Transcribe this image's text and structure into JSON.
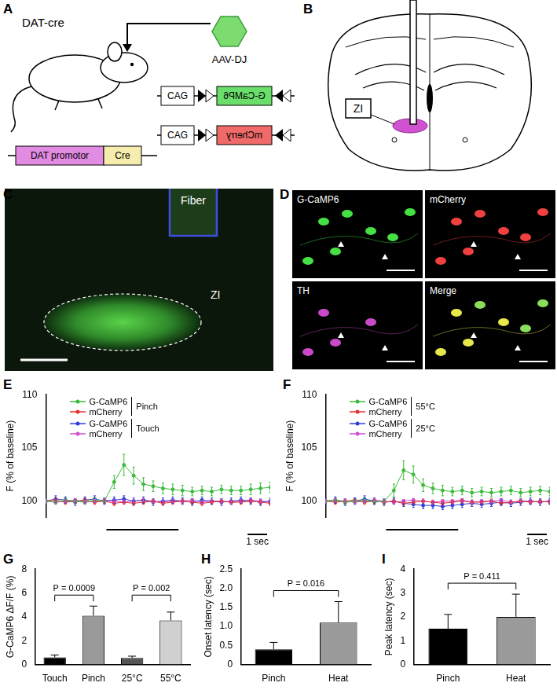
{
  "panels": {
    "A": {
      "label": "A",
      "mouse": "DAT-cre",
      "virus": "AAV-DJ",
      "transgene": [
        "DAT promotor",
        "Cre"
      ],
      "constructs": [
        [
          "CAG",
          "G-CaMP6"
        ],
        [
          "CAG",
          "mCherry"
        ]
      ]
    },
    "B": {
      "label": "B",
      "region": "ZI"
    },
    "C": {
      "label": "C",
      "fiber": "Fiber",
      "region": "ZI"
    },
    "D": {
      "label": "D",
      "channels": [
        "G-CaMP6",
        "mCherry",
        "TH",
        "Merge"
      ]
    }
  },
  "chart_data": [
    {
      "label": "E",
      "type": "line",
      "y_label": "F (% of baseline)",
      "x": [
        0,
        0.5,
        1,
        1.5,
        2,
        2.5,
        3,
        3.5,
        4,
        4.5,
        5,
        5.5,
        6,
        6.5,
        7,
        7.5,
        8,
        8.5,
        9,
        9.5,
        10,
        10.5,
        11,
        11.5
      ],
      "xlim": [
        0,
        11.5
      ],
      "ylim": [
        98.5,
        110
      ],
      "yticks": [
        100,
        105,
        110
      ],
      "tick_labels": "y",
      "grid": false,
      "stimulus": [
        3.1,
        6.8
      ],
      "scale_bar": {
        "length": 1,
        "label": "1 sec"
      },
      "series": [
        {
          "name": "G-CaMP6",
          "group": "Pinch",
          "color": "#3dbb3d",
          "values": [
            100.0,
            99.9,
            100.1,
            100.0,
            99.9,
            100.1,
            100.0,
            101.8,
            103.4,
            102.4,
            101.6,
            101.4,
            101.2,
            101.1,
            101.0,
            100.9,
            101.0,
            100.9,
            101.1,
            101.0,
            101.0,
            101.1,
            101.2,
            101.3
          ],
          "errors": [
            0.2,
            0.2,
            0.2,
            0.2,
            0.2,
            0.2,
            0.2,
            0.6,
            1.0,
            0.8,
            0.6,
            0.5,
            0.5,
            0.5,
            0.5,
            0.4,
            0.4,
            0.4,
            0.4,
            0.4,
            0.4,
            0.5,
            0.5,
            0.5
          ]
        },
        {
          "name": "mCherry",
          "group": "Pinch",
          "color": "#e8312f",
          "values": [
            100.0,
            100.1,
            99.9,
            100.0,
            100.1,
            99.9,
            100.0,
            99.8,
            99.9,
            99.8,
            99.9,
            100.0,
            99.8,
            99.9,
            100.0,
            99.9,
            99.8,
            99.9,
            100.0,
            99.9,
            99.9,
            100.0,
            99.9,
            99.8
          ],
          "errors": [
            0.2,
            0.2,
            0.2,
            0.2,
            0.2,
            0.2,
            0.2,
            0.2,
            0.2,
            0.2,
            0.2,
            0.2,
            0.2,
            0.2,
            0.2,
            0.2,
            0.2,
            0.2,
            0.2,
            0.2,
            0.2,
            0.2,
            0.2,
            0.2
          ]
        },
        {
          "name": "G-CaMP6",
          "group": "Touch",
          "color": "#2f3fd8",
          "values": [
            100.0,
            100.2,
            100.1,
            99.9,
            100.1,
            100.2,
            100.0,
            100.1,
            100.2,
            100.0,
            100.1,
            99.9,
            100.0,
            100.1,
            100.0,
            99.9,
            100.1,
            100.0,
            99.9,
            100.0,
            100.1,
            100.0,
            99.9,
            100.0
          ],
          "errors": [
            0.3,
            0.3,
            0.3,
            0.3,
            0.3,
            0.3,
            0.3,
            0.3,
            0.3,
            0.3,
            0.3,
            0.3,
            0.3,
            0.3,
            0.3,
            0.3,
            0.3,
            0.3,
            0.3,
            0.3,
            0.3,
            0.3,
            0.3,
            0.3
          ]
        },
        {
          "name": "mCherry",
          "group": "Touch",
          "color": "#d24fd2",
          "values": [
            100.0,
            99.9,
            100.0,
            100.1,
            99.9,
            100.0,
            100.1,
            100.0,
            99.9,
            100.0,
            100.1,
            100.0,
            99.9,
            100.0,
            100.0,
            100.1,
            99.9,
            100.0,
            100.0,
            99.9,
            100.0,
            100.1,
            100.0,
            99.9
          ],
          "errors": [
            0.15,
            0.15,
            0.15,
            0.15,
            0.15,
            0.15,
            0.15,
            0.15,
            0.15,
            0.15,
            0.15,
            0.15,
            0.15,
            0.15,
            0.15,
            0.15,
            0.15,
            0.15,
            0.15,
            0.15,
            0.15,
            0.15,
            0.15,
            0.15
          ]
        }
      ]
    },
    {
      "label": "F",
      "type": "line",
      "y_label": "F (% of baseline)",
      "x": [
        0,
        0.5,
        1,
        1.5,
        2,
        2.5,
        3,
        3.5,
        4,
        4.5,
        5,
        5.5,
        6,
        6.5,
        7,
        7.5,
        8,
        8.5,
        9,
        9.5,
        10,
        10.5,
        11,
        11.5
      ],
      "xlim": [
        0,
        11.5
      ],
      "ylim": [
        98.5,
        110
      ],
      "yticks": [
        100,
        105,
        110
      ],
      "tick_labels": "y",
      "grid": false,
      "stimulus": [
        3.1,
        6.8
      ],
      "scale_bar": {
        "length": 1,
        "label": "1 sec"
      },
      "series": [
        {
          "name": "G-CaMP6",
          "group": "55°C",
          "color": "#3dbb3d",
          "values": [
            100.0,
            100.1,
            99.9,
            100.0,
            100.1,
            99.9,
            100.0,
            101.0,
            102.9,
            102.5,
            101.5,
            101.2,
            101.0,
            100.9,
            101.0,
            100.8,
            100.9,
            100.8,
            100.9,
            101.0,
            100.8,
            100.9,
            101.0,
            100.9
          ],
          "errors": [
            0.2,
            0.2,
            0.2,
            0.2,
            0.2,
            0.2,
            0.2,
            0.6,
            0.9,
            0.8,
            0.6,
            0.5,
            0.5,
            0.4,
            0.4,
            0.4,
            0.4,
            0.4,
            0.4,
            0.4,
            0.4,
            0.4,
            0.4,
            0.4
          ]
        },
        {
          "name": "mCherry",
          "group": "55°C",
          "color": "#e8312f",
          "values": [
            100.0,
            99.9,
            100.0,
            100.1,
            99.9,
            100.0,
            99.9,
            100.0,
            99.8,
            99.9,
            100.0,
            99.9,
            99.8,
            99.9,
            100.0,
            99.9,
            99.9,
            100.0,
            99.8,
            99.9,
            100.0,
            99.9,
            100.0,
            99.9
          ],
          "errors": [
            0.2,
            0.2,
            0.2,
            0.2,
            0.2,
            0.2,
            0.2,
            0.2,
            0.2,
            0.2,
            0.2,
            0.2,
            0.2,
            0.2,
            0.2,
            0.2,
            0.2,
            0.2,
            0.2,
            0.2,
            0.2,
            0.2,
            0.2,
            0.2
          ]
        },
        {
          "name": "G-CaMP6",
          "group": "25°C",
          "color": "#2f3fd8",
          "values": [
            100.0,
            100.1,
            99.9,
            100.0,
            100.2,
            100.0,
            99.9,
            100.0,
            99.8,
            99.7,
            99.6,
            99.6,
            99.5,
            99.6,
            99.7,
            99.8,
            99.7,
            99.8,
            99.9,
            99.8,
            99.9,
            100.0,
            99.9,
            100.0
          ],
          "errors": [
            0.3,
            0.3,
            0.3,
            0.3,
            0.3,
            0.3,
            0.3,
            0.3,
            0.3,
            0.3,
            0.3,
            0.3,
            0.3,
            0.3,
            0.3,
            0.3,
            0.3,
            0.3,
            0.3,
            0.3,
            0.3,
            0.3,
            0.3,
            0.3
          ]
        },
        {
          "name": "mCherry",
          "group": "25°C",
          "color": "#d24fd2",
          "values": [
            100.0,
            100.1,
            100.0,
            99.9,
            100.0,
            100.1,
            100.0,
            99.9,
            100.0,
            100.1,
            100.0,
            99.9,
            100.0,
            100.0,
            100.1,
            99.9,
            100.0,
            100.0,
            100.1,
            99.9,
            100.0,
            100.0,
            99.9,
            100.0
          ],
          "errors": [
            0.15,
            0.15,
            0.15,
            0.15,
            0.15,
            0.15,
            0.15,
            0.15,
            0.15,
            0.15,
            0.15,
            0.15,
            0.15,
            0.15,
            0.15,
            0.15,
            0.15,
            0.15,
            0.15,
            0.15,
            0.15,
            0.15,
            0.15,
            0.15
          ]
        }
      ]
    },
    {
      "label": "G",
      "type": "bar",
      "y_label": "G-CaMP6 ΔF/F (%)",
      "categories": [
        "Touch",
        "Pinch",
        "25°C",
        "55°C"
      ],
      "values": [
        0.6,
        4.1,
        0.55,
        3.7
      ],
      "errors": [
        0.2,
        0.8,
        0.15,
        0.7
      ],
      "colors": [
        "#000000",
        "#9a9a9a",
        "#555555",
        "#d0d0d0"
      ],
      "ylim": [
        0,
        8
      ],
      "yticks": [
        0,
        2,
        4,
        6,
        8
      ],
      "grid": false,
      "comparisons": [
        {
          "between": [
            "Touch",
            "Pinch"
          ],
          "label": "P = 0.0009"
        },
        {
          "between": [
            "25°C",
            "55°C"
          ],
          "label": "P = 0.002"
        }
      ]
    },
    {
      "label": "H",
      "type": "bar",
      "y_label": "Onset latency (sec)",
      "categories": [
        "Pinch",
        "Heat"
      ],
      "values": [
        0.4,
        1.1
      ],
      "errors": [
        0.18,
        0.55
      ],
      "colors": [
        "#000000",
        "#9a9a9a"
      ],
      "ylim": [
        0,
        2.5
      ],
      "yticks": [
        0,
        0.5,
        {
          "value": 1,
          "label": "1.0"
        },
        1.5,
        {
          "value": 2,
          "label": "2.0"
        },
        2.5
      ],
      "grid": false,
      "comparisons": [
        {
          "between": [
            "Pinch",
            "Heat"
          ],
          "label": "P = 0.016"
        }
      ]
    },
    {
      "label": "I",
      "type": "bar",
      "y_label": "Peak latency (sec)",
      "categories": [
        "Pinch",
        "Heat"
      ],
      "values": [
        1.5,
        2.0
      ],
      "errors": [
        0.6,
        0.95
      ],
      "colors": [
        "#000000",
        "#9a9a9a"
      ],
      "ylim": [
        0,
        4
      ],
      "yticks": [
        0,
        1,
        2,
        3,
        4
      ],
      "grid": false,
      "comparisons": [
        {
          "between": [
            "Pinch",
            "Heat"
          ],
          "label": "P = 0.411"
        }
      ]
    }
  ]
}
